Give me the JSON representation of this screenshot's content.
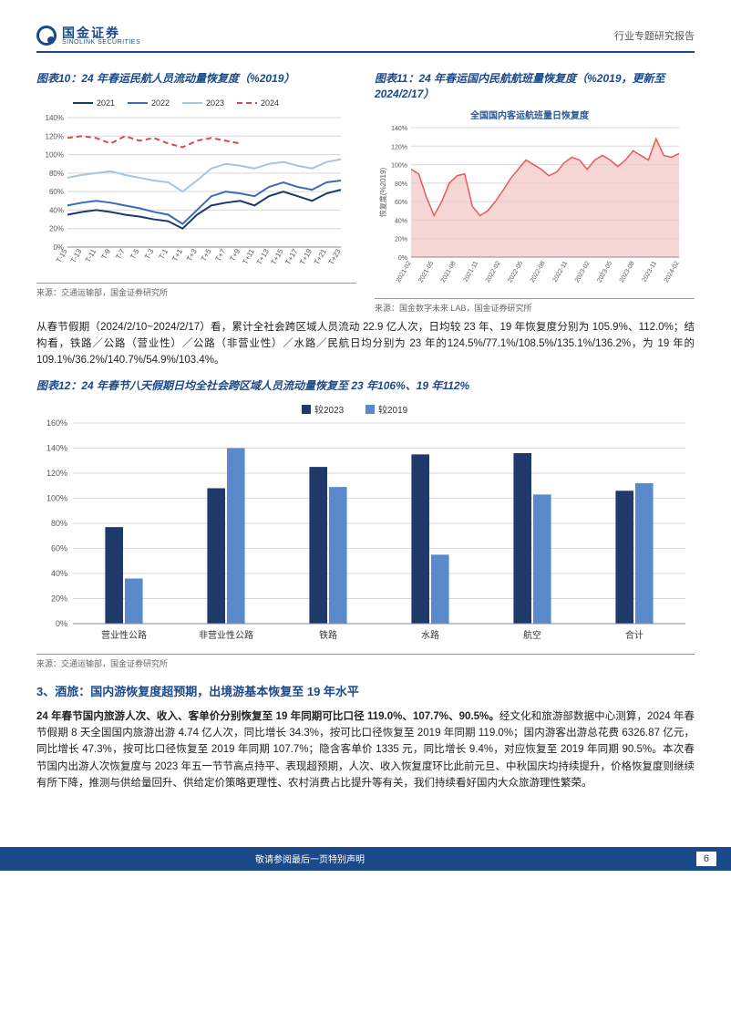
{
  "header": {
    "logo_cn": "国金证券",
    "logo_en": "SINOLINK SECURITIES",
    "right_label": "行业专题研究报告"
  },
  "chart10": {
    "title": "图表10：24 年春运民航人员流动量恢复度（%2019）",
    "type": "line",
    "x_labels": [
      "T-15",
      "T-13",
      "T-11",
      "T-9",
      "T-7",
      "T-5",
      "T-3",
      "T-1",
      "T+1",
      "T+3",
      "T+5",
      "T+7",
      "T+9",
      "T+11",
      "T+13",
      "T+15",
      "T+17",
      "T+19",
      "T+21",
      "T+23"
    ],
    "ylim": [
      0,
      140
    ],
    "ytick_step": 20,
    "series": [
      {
        "name": "2021",
        "color": "#1a3a6a",
        "dash": "none",
        "values": [
          35,
          38,
          40,
          38,
          35,
          33,
          30,
          28,
          20,
          35,
          45,
          48,
          50,
          45,
          55,
          60,
          55,
          50,
          58,
          62
        ]
      },
      {
        "name": "2022",
        "color": "#3a6aba",
        "dash": "none",
        "values": [
          45,
          48,
          50,
          48,
          45,
          42,
          38,
          35,
          25,
          40,
          55,
          60,
          58,
          55,
          65,
          70,
          65,
          62,
          70,
          72
        ]
      },
      {
        "name": "2023",
        "color": "#a8c4e4",
        "dash": "none",
        "values": [
          75,
          78,
          80,
          82,
          78,
          75,
          72,
          70,
          60,
          72,
          85,
          90,
          88,
          85,
          90,
          92,
          88,
          85,
          92,
          95
        ]
      },
      {
        "name": "2024",
        "color": "#d84a4a",
        "dash": "6,4",
        "values": [
          118,
          120,
          118,
          112,
          120,
          115,
          118,
          112,
          108,
          115,
          118,
          115,
          112,
          null,
          null,
          null,
          null,
          null,
          null,
          null
        ]
      }
    ],
    "legend_pos": "top",
    "grid_color": "#d8d8d8",
    "axis_fontsize": 8,
    "source": "来源：交通运输部，国金证券研究所"
  },
  "chart11": {
    "title": "图表11：24 年春运国内民航航班量恢复度（%2019，更新至 2024/2/17）",
    "subtitle": "全国国内客运航班量日恢复度",
    "type": "area",
    "ylabel": "恢复度(%2019)",
    "ylim": [
      0,
      140
    ],
    "ytick_step": 20,
    "line_color": "#e85a5a",
    "fill_color": "#f4c4c4",
    "grid_color": "#d8d8d8",
    "values": [
      95,
      90,
      65,
      45,
      60,
      80,
      88,
      90,
      55,
      45,
      50,
      60,
      72,
      85,
      95,
      105,
      100,
      95,
      88,
      92,
      102,
      108,
      105,
      95,
      105,
      110,
      105,
      98,
      105,
      115,
      110,
      105,
      128,
      110,
      108,
      112
    ],
    "x_labels": [
      "2021-02",
      "2021-05",
      "2021-08",
      "2021-11",
      "2022-02",
      "2022-05",
      "2022-08",
      "2022-11",
      "2023-02",
      "2023-05",
      "2023-08",
      "2023-11",
      "2024-02"
    ],
    "axis_fontsize": 7,
    "source": "来源：国金数字未来 LAB，国金证券研究所"
  },
  "para1": "从春节假期（2024/2/10~2024/2/17）看，累计全社会跨区域人员流动 22.9 亿人次，日均较 23 年、19 年恢复度分别为 105.9%、112.0%；结构看，铁路／公路（营业性）／公路（非营业性）／水路／民航日均分别为 23 年的124.5%/77.1%/108.5%/135.1%/136.2%，为 19 年的 109.1%/36.2%/140.7%/54.9%/103.4%。",
  "chart12": {
    "title": "图表12：24 年春节八天假期日均全社会跨区域人员流动量恢复至 23 年106%、19 年112%",
    "type": "bar",
    "categories": [
      "营业性公路",
      "非营业性公路",
      "铁路",
      "水路",
      "航空",
      "合计"
    ],
    "series": [
      {
        "name": "较2023",
        "color": "#1f3a6a",
        "values": [
          77,
          108,
          125,
          135,
          136,
          106
        ]
      },
      {
        "name": "较2019",
        "color": "#5a8acc",
        "values": [
          36,
          140,
          109,
          55,
          103,
          112
        ]
      }
    ],
    "ylim": [
      0,
      160
    ],
    "ytick_step": 20,
    "grid_color": "#d8d8d8",
    "bar_width": 0.35,
    "axis_fontsize": 9,
    "legend_pos": "top",
    "source": "来源：交通运输部，国金证券研究所"
  },
  "section3_heading": "3、酒旅：国内游恢复度超预期，出境游基本恢复至 19 年水平",
  "para2_bold": "24 年春节国内旅游人次、收入、客单价分别恢复至 19 年同期可比口径 119.0%、107.7%、90.5%。",
  "para2_rest": "经文化和旅游部数据中心测算，2024 年春节假期 8 天全国国内旅游出游 4.74 亿人次，同比增长 34.3%，按可比口径恢复至 2019 年同期 119.0%；国内游客出游总花费 6326.87 亿元，同比增长 47.3%，按可比口径恢复至 2019 年同期 107.7%；隐含客单价 1335 元，同比增长 9.4%，对应恢复至 2019 年同期 90.5%。本次春节国内出游人次恢复度与 2023 年五一节节高点持平、表现超预期，人次、收入恢复度环比此前元旦、中秋国庆均持续提升，价格恢复度则继续有所下降，推测与供给量回升、供给定价策略更理性、农村消费占比提升等有关，我们持续看好国内大众旅游理性繁荣。",
  "footer": {
    "disclaimer": "敬请参阅最后一页特别声明",
    "page": "6"
  }
}
